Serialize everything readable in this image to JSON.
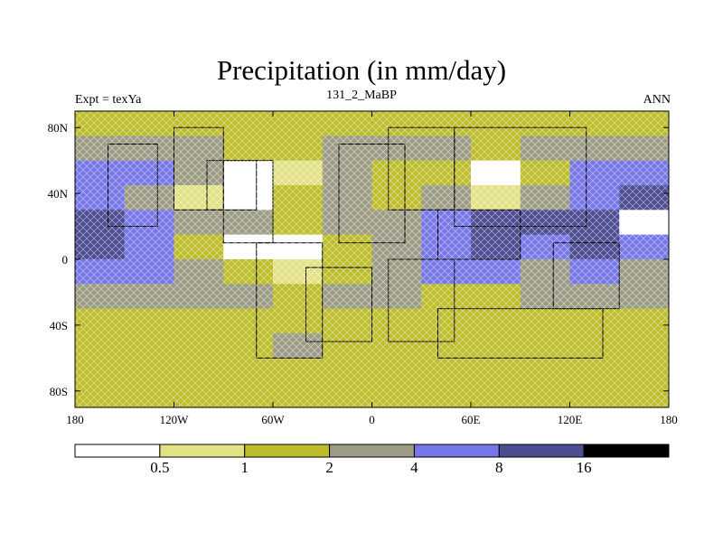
{
  "header": {
    "title": "Precipitation (in mm/day)",
    "left_label": "Expt = texYa",
    "center_label": "131_2_MaBP",
    "right_label": "ANN"
  },
  "map": {
    "lon_ticks": [
      "180",
      "120W",
      "60W",
      "0",
      "60E",
      "120E",
      "180"
    ],
    "lat_ticks": [
      "80N",
      "40N",
      "0",
      "40S",
      "80S"
    ]
  },
  "colorbar": {
    "labels": [
      "0.5",
      "1",
      "2",
      "4",
      "8",
      "16"
    ],
    "levels": [
      0.5,
      1,
      2,
      4,
      8,
      16
    ],
    "colors": [
      "#ffffff",
      "#e2e285",
      "#bdbd2b",
      "#9c9c85",
      "#7676e8",
      "#4d4d92",
      "#000000"
    ]
  },
  "chart_data": {
    "type": "heatmap",
    "title": "Precipitation (in mm/day)",
    "subtitle": "131_2_MaBP",
    "xlabel": "",
    "ylabel": "",
    "xlim": [
      -180,
      180
    ],
    "ylim": [
      -90,
      90
    ],
    "x_ticks": [
      "180",
      "120W",
      "60W",
      "0",
      "60E",
      "120E",
      "180"
    ],
    "y_ticks": [
      "80N",
      "40N",
      "0",
      "40S",
      "80S"
    ],
    "color_levels": [
      0.5,
      1,
      2,
      4,
      8,
      16
    ],
    "land_mask": [
      [
        20,
        70,
        -160,
        -130
      ],
      [
        30,
        80,
        -120,
        -90
      ],
      [
        10,
        60,
        -90,
        -60
      ],
      [
        30,
        60,
        -100,
        -70
      ],
      [
        -60,
        10,
        -70,
        -30
      ],
      [
        -50,
        -5,
        -40,
        0
      ],
      [
        10,
        70,
        -20,
        20
      ],
      [
        30,
        80,
        10,
        50
      ],
      [
        20,
        80,
        50,
        130
      ],
      [
        0,
        30,
        40,
        90
      ],
      [
        -50,
        0,
        10,
        50
      ],
      [
        -60,
        -30,
        40,
        140
      ],
      [
        -30,
        10,
        110,
        150
      ]
    ],
    "precip_grid": {
      "lat_step": 15,
      "lon_step": 30,
      "lat_start": 82.5,
      "lon_start": -165,
      "values": [
        [
          1.5,
          1.5,
          1.5,
          1.5,
          1.5,
          1.5,
          1.5,
          1.5,
          1.5,
          1.5,
          1.5,
          1.5
        ],
        [
          3.0,
          3.0,
          2.5,
          1.5,
          1.5,
          3.0,
          2.5,
          2.0,
          1.5,
          2.5,
          3.0,
          3.0
        ],
        [
          6.0,
          5.0,
          3.0,
          0.3,
          0.8,
          3.0,
          1.5,
          1.5,
          0.3,
          1.5,
          5.0,
          6.0
        ],
        [
          5.0,
          2.5,
          0.8,
          0.3,
          1.5,
          3.0,
          1.5,
          3.0,
          0.8,
          3.0,
          6.0,
          8.5
        ],
        [
          8.5,
          6.0,
          3.0,
          3.0,
          1.5,
          2.5,
          3.0,
          5.0,
          8.5,
          9.0,
          8.5,
          0.3
        ],
        [
          8.5,
          5.0,
          1.5,
          0.3,
          0.3,
          1.5,
          3.0,
          6.0,
          9.0,
          6.0,
          9.0,
          5.0
        ],
        [
          5.0,
          6.0,
          3.0,
          1.5,
          0.8,
          1.5,
          2.5,
          6.0,
          6.0,
          3.0,
          5.0,
          3.0
        ],
        [
          3.0,
          3.0,
          3.0,
          2.5,
          1.5,
          3.0,
          3.0,
          1.5,
          1.5,
          2.5,
          3.0,
          3.0
        ],
        [
          1.5,
          1.5,
          1.5,
          1.5,
          1.5,
          1.5,
          1.5,
          1.5,
          1.5,
          1.5,
          1.5,
          1.5
        ],
        [
          1.5,
          1.5,
          1.5,
          1.5,
          2.5,
          1.5,
          1.5,
          1.5,
          1.5,
          1.5,
          1.5,
          1.5
        ],
        [
          1.5,
          1.5,
          1.5,
          1.5,
          1.5,
          1.5,
          1.5,
          1.5,
          1.5,
          1.5,
          1.5,
          1.5
        ],
        [
          1.5,
          1.5,
          1.5,
          1.5,
          1.5,
          1.5,
          1.5,
          1.5,
          1.5,
          1.5,
          1.5,
          1.5
        ]
      ]
    }
  }
}
